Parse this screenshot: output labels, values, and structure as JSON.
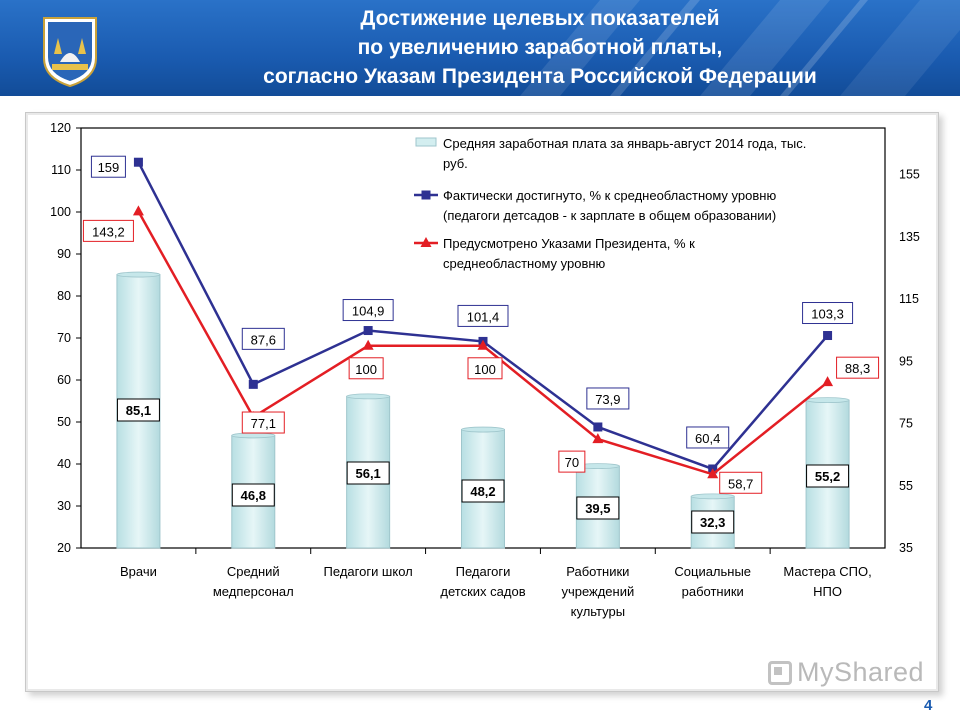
{
  "header": {
    "title_lines": [
      "Достижение целевых показателей",
      "по увеличению заработной платы,",
      "согласно Указам Президента Российской Федерации"
    ]
  },
  "page_number": "4",
  "watermark": "MyShared",
  "chart_data": {
    "type": "bar",
    "categories": [
      [
        "Врачи"
      ],
      [
        "Средний",
        "медперсонал"
      ],
      [
        "Педагоги школ"
      ],
      [
        "Педагоги",
        "детских садов"
      ],
      [
        "Работники",
        "учреждений",
        "культуры"
      ],
      [
        "Социальные",
        "работники"
      ],
      [
        "Мастера СПО,",
        "НПО"
      ]
    ],
    "y_left": {
      "min": 20,
      "max": 120,
      "ticks": [
        "120",
        "110",
        "100",
        "90",
        "80",
        "70",
        "60",
        "50",
        "40",
        "30",
        "20"
      ]
    },
    "y_right": {
      "min": 35,
      "max": 170,
      "ticks": [
        "155",
        "135",
        "115",
        "95",
        "75",
        "55",
        "35"
      ]
    },
    "bars": {
      "legend": [
        "Средняя заработная плата за январь-август 2014 года, тыс.",
        "руб."
      ],
      "values": [
        85.1,
        46.8,
        56.1,
        48.2,
        39.5,
        32.3,
        55.2
      ],
      "labels": [
        "85,1",
        "46,8",
        "56,1",
        "48,2",
        "39,5",
        "32,3",
        "55,2"
      ],
      "fill": "#d3eef0",
      "stroke": "#9fc6cc"
    },
    "series": [
      {
        "legend": [
          "Фактически достигнуто, % к среднеобластному уровню",
          "(педагоги детсадов - к зарплате в общем образовании)"
        ],
        "values": [
          159,
          87.6,
          104.9,
          101.4,
          73.9,
          60.4,
          103.3
        ],
        "labels": [
          "159",
          "87,6",
          "104,9",
          "101,4",
          "73,9",
          "60,4",
          "103,3"
        ],
        "color": "#2e3192",
        "marker": "square"
      },
      {
        "legend": [
          "Предусмотрено Указами Президента, % к",
          "среднеобластному уровню"
        ],
        "values": [
          143.2,
          77.1,
          100,
          100,
          70,
          58.7,
          88.3
        ],
        "labels": [
          "143,2",
          "77,1",
          "100",
          "100",
          "70",
          "58,7",
          "88,3"
        ],
        "color": "#e31e24",
        "marker": "triangle"
      }
    ]
  }
}
